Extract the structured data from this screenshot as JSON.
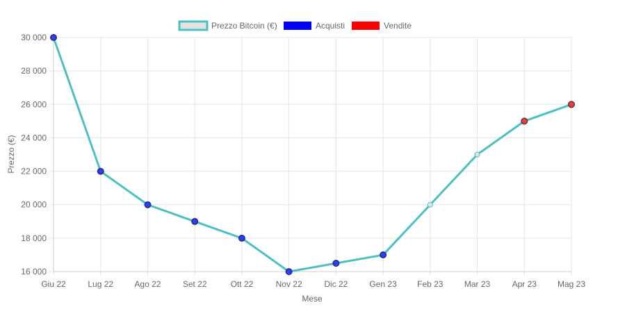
{
  "chart_data": {
    "type": "line",
    "title": "",
    "xlabel": "Mese",
    "ylabel": "Prezzo (€)",
    "categories": [
      "Giu 22",
      "Lug 22",
      "Ago 22",
      "Set 22",
      "Ott 22",
      "Nov 22",
      "Dic 22",
      "Gen 23",
      "Feb 23",
      "Mar 23",
      "Apr 23",
      "Mag 23"
    ],
    "ylim": [
      16000,
      30000
    ],
    "yticks": [
      16000,
      18000,
      20000,
      22000,
      24000,
      26000,
      28000,
      30000
    ],
    "ytick_labels": [
      "16 000",
      "18 000",
      "20 000",
      "22 000",
      "24 000",
      "26 000",
      "28 000",
      "30 000"
    ],
    "grid": true,
    "legend_position": "top-center",
    "series": [
      {
        "name": "Prezzo Bitcoin (€)",
        "kind": "line",
        "color": "#4bc0c0",
        "values": [
          30000,
          22000,
          20000,
          19000,
          18000,
          16000,
          16500,
          17000,
          20000,
          23000,
          25000,
          26000
        ]
      },
      {
        "name": "Acquisti",
        "kind": "points",
        "color": "#0000ff",
        "points": [
          {
            "x": "Giu 22",
            "y": 30000
          },
          {
            "x": "Lug 22",
            "y": 22000
          },
          {
            "x": "Ago 22",
            "y": 20000
          },
          {
            "x": "Set 22",
            "y": 19000
          },
          {
            "x": "Ott 22",
            "y": 18000
          },
          {
            "x": "Nov 22",
            "y": 16000
          },
          {
            "x": "Dic 22",
            "y": 16500
          },
          {
            "x": "Gen 23",
            "y": 17000
          }
        ]
      },
      {
        "name": "Vendite",
        "kind": "points",
        "color": "#ff0000",
        "points": [
          {
            "x": "Apr 23",
            "y": 25000
          },
          {
            "x": "Mag 23",
            "y": 26000
          }
        ]
      }
    ]
  },
  "colors": {
    "grid": "#e5e5e5",
    "axis": "#cccccc",
    "text": "#666666",
    "line_fill": "#e3e3e3"
  }
}
